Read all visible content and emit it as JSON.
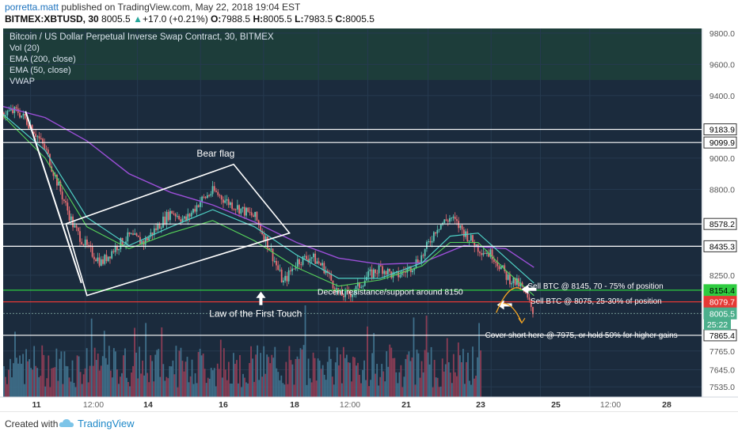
{
  "header": {
    "author": "porretta.matt",
    "published": " published on TradingView.com, May 22, 2018 19:04 EST",
    "symbol": "BITMEX:XBTUSD, 30",
    "last": "8005.5",
    "change": "+17.0 (+0.21%)",
    "o_label": "O:",
    "o": "7988.5",
    "h_label": "H:",
    "h": "8005.5",
    "l_label": "L:",
    "l": "7983.5",
    "c_label": "C:",
    "c": "8005.5"
  },
  "legend": [
    "Bitcoin / US Dollar Perpetual Inverse Swap Contract, 30, BITMEX",
    "Vol (20)",
    "EMA (200, close)",
    "EMA (50, close)",
    "VWAP"
  ],
  "colors": {
    "background": "#1b2b3d",
    "top_band": "#1d3d3a",
    "grid": "#263a50",
    "axis_bg": "#ffffff",
    "ema200": "#9c4fd8",
    "ema50": "#4fd1c5",
    "vwap": "#57d45a",
    "candle_up": "#5ec8b6",
    "candle_down": "#e86d72",
    "vol_up": "#3f6f8a",
    "vol_down": "#8b3d55",
    "white": "#ffffff",
    "green_line": "#2ecc40",
    "red_line": "#e53935",
    "orange": "#f5a623"
  },
  "footer": {
    "created": "Created with",
    "brand": "TradingView"
  },
  "chart_data": {
    "type": "candlestick",
    "y_axis": {
      "range": [
        7470,
        9830
      ],
      "ticks": [
        9800.0,
        9600.0,
        9400.0,
        9000.0,
        8800.0,
        8250.0,
        7765.0,
        7645.0,
        7535.0
      ],
      "tick_labels": [
        "9800.0",
        "9600.0",
        "9400.0",
        "9000.0",
        "8800.0",
        "8250.0",
        "7765.0",
        "7645.0",
        "7535.0"
      ]
    },
    "x_axis": {
      "tick_labels": [
        "11",
        "12:00",
        "14",
        "16",
        "18",
        "12:00",
        "21",
        "23",
        "25",
        "12:00",
        "28"
      ]
    },
    "horizontal_levels": [
      {
        "value": 9183.9,
        "label": "9183.9",
        "color": "white"
      },
      {
        "value": 9099.9,
        "label": "9099.9",
        "color": "white"
      },
      {
        "value": 8578.2,
        "label": "8578.2",
        "color": "white"
      },
      {
        "value": 8435.3,
        "label": "8435.3",
        "color": "white"
      },
      {
        "value": 8154.4,
        "label": "8154.4",
        "color": "green"
      },
      {
        "value": 8079.7,
        "label": "8079.7",
        "color": "red"
      },
      {
        "value": 8005.5,
        "label": "8005.5",
        "color": "current"
      },
      {
        "value": 7865.4,
        "label": "7865.4",
        "color": "white"
      }
    ],
    "countdown": "25:22",
    "price_path": [
      [
        0,
        9290
      ],
      [
        0.02,
        9300
      ],
      [
        0.04,
        9200
      ],
      [
        0.06,
        9050
      ],
      [
        0.08,
        8800
      ],
      [
        0.1,
        8560
      ],
      [
        0.12,
        8420
      ],
      [
        0.14,
        8330
      ],
      [
        0.16,
        8430
      ],
      [
        0.18,
        8500
      ],
      [
        0.2,
        8460
      ],
      [
        0.22,
        8560
      ],
      [
        0.24,
        8660
      ],
      [
        0.26,
        8600
      ],
      [
        0.28,
        8720
      ],
      [
        0.3,
        8790
      ],
      [
        0.32,
        8720
      ],
      [
        0.34,
        8670
      ],
      [
        0.36,
        8620
      ],
      [
        0.38,
        8430
      ],
      [
        0.4,
        8200
      ],
      [
        0.42,
        8340
      ],
      [
        0.44,
        8370
      ],
      [
        0.46,
        8290
      ],
      [
        0.48,
        8120
      ],
      [
        0.5,
        8140
      ],
      [
        0.52,
        8240
      ],
      [
        0.54,
        8300
      ],
      [
        0.56,
        8240
      ],
      [
        0.58,
        8290
      ],
      [
        0.6,
        8380
      ],
      [
        0.62,
        8560
      ],
      [
        0.64,
        8620
      ],
      [
        0.66,
        8520
      ],
      [
        0.68,
        8420
      ],
      [
        0.7,
        8380
      ],
      [
        0.72,
        8240
      ],
      [
        0.74,
        8180
      ],
      [
        0.76,
        8000
      ]
    ],
    "ema200_path": [
      [
        0,
        9330
      ],
      [
        0.06,
        9260
      ],
      [
        0.12,
        9110
      ],
      [
        0.18,
        8900
      ],
      [
        0.24,
        8780
      ],
      [
        0.3,
        8700
      ],
      [
        0.36,
        8590
      ],
      [
        0.42,
        8460
      ],
      [
        0.48,
        8360
      ],
      [
        0.54,
        8320
      ],
      [
        0.6,
        8330
      ],
      [
        0.66,
        8440
      ],
      [
        0.72,
        8420
      ],
      [
        0.76,
        8300
      ]
    ],
    "ema50_path": [
      [
        0,
        9280
      ],
      [
        0.06,
        9050
      ],
      [
        0.12,
        8620
      ],
      [
        0.18,
        8440
      ],
      [
        0.24,
        8560
      ],
      [
        0.3,
        8670
      ],
      [
        0.36,
        8560
      ],
      [
        0.42,
        8380
      ],
      [
        0.48,
        8230
      ],
      [
        0.54,
        8230
      ],
      [
        0.6,
        8330
      ],
      [
        0.64,
        8500
      ],
      [
        0.68,
        8520
      ],
      [
        0.72,
        8360
      ],
      [
        0.76,
        8200
      ]
    ],
    "vwap_path": [
      [
        0,
        9270
      ],
      [
        0.06,
        9000
      ],
      [
        0.12,
        8560
      ],
      [
        0.18,
        8420
      ],
      [
        0.24,
        8520
      ],
      [
        0.3,
        8600
      ],
      [
        0.36,
        8470
      ],
      [
        0.42,
        8300
      ],
      [
        0.48,
        8180
      ],
      [
        0.54,
        8220
      ],
      [
        0.6,
        8310
      ],
      [
        0.64,
        8460
      ],
      [
        0.68,
        8460
      ],
      [
        0.72,
        8280
      ],
      [
        0.76,
        8120
      ]
    ],
    "annotations": {
      "bear_flag": "Bear flag",
      "law_first_touch": "Law of the First Touch",
      "resistance": "Decent resistance/support around 8150",
      "sell1": "Sell BTC @ 8145, 70 - 75% of position",
      "sell2": "Sell BTC @ 8075, 25-30% of position",
      "cover": "Cover short here @ 7975, or hold 50% for higher gains"
    }
  }
}
